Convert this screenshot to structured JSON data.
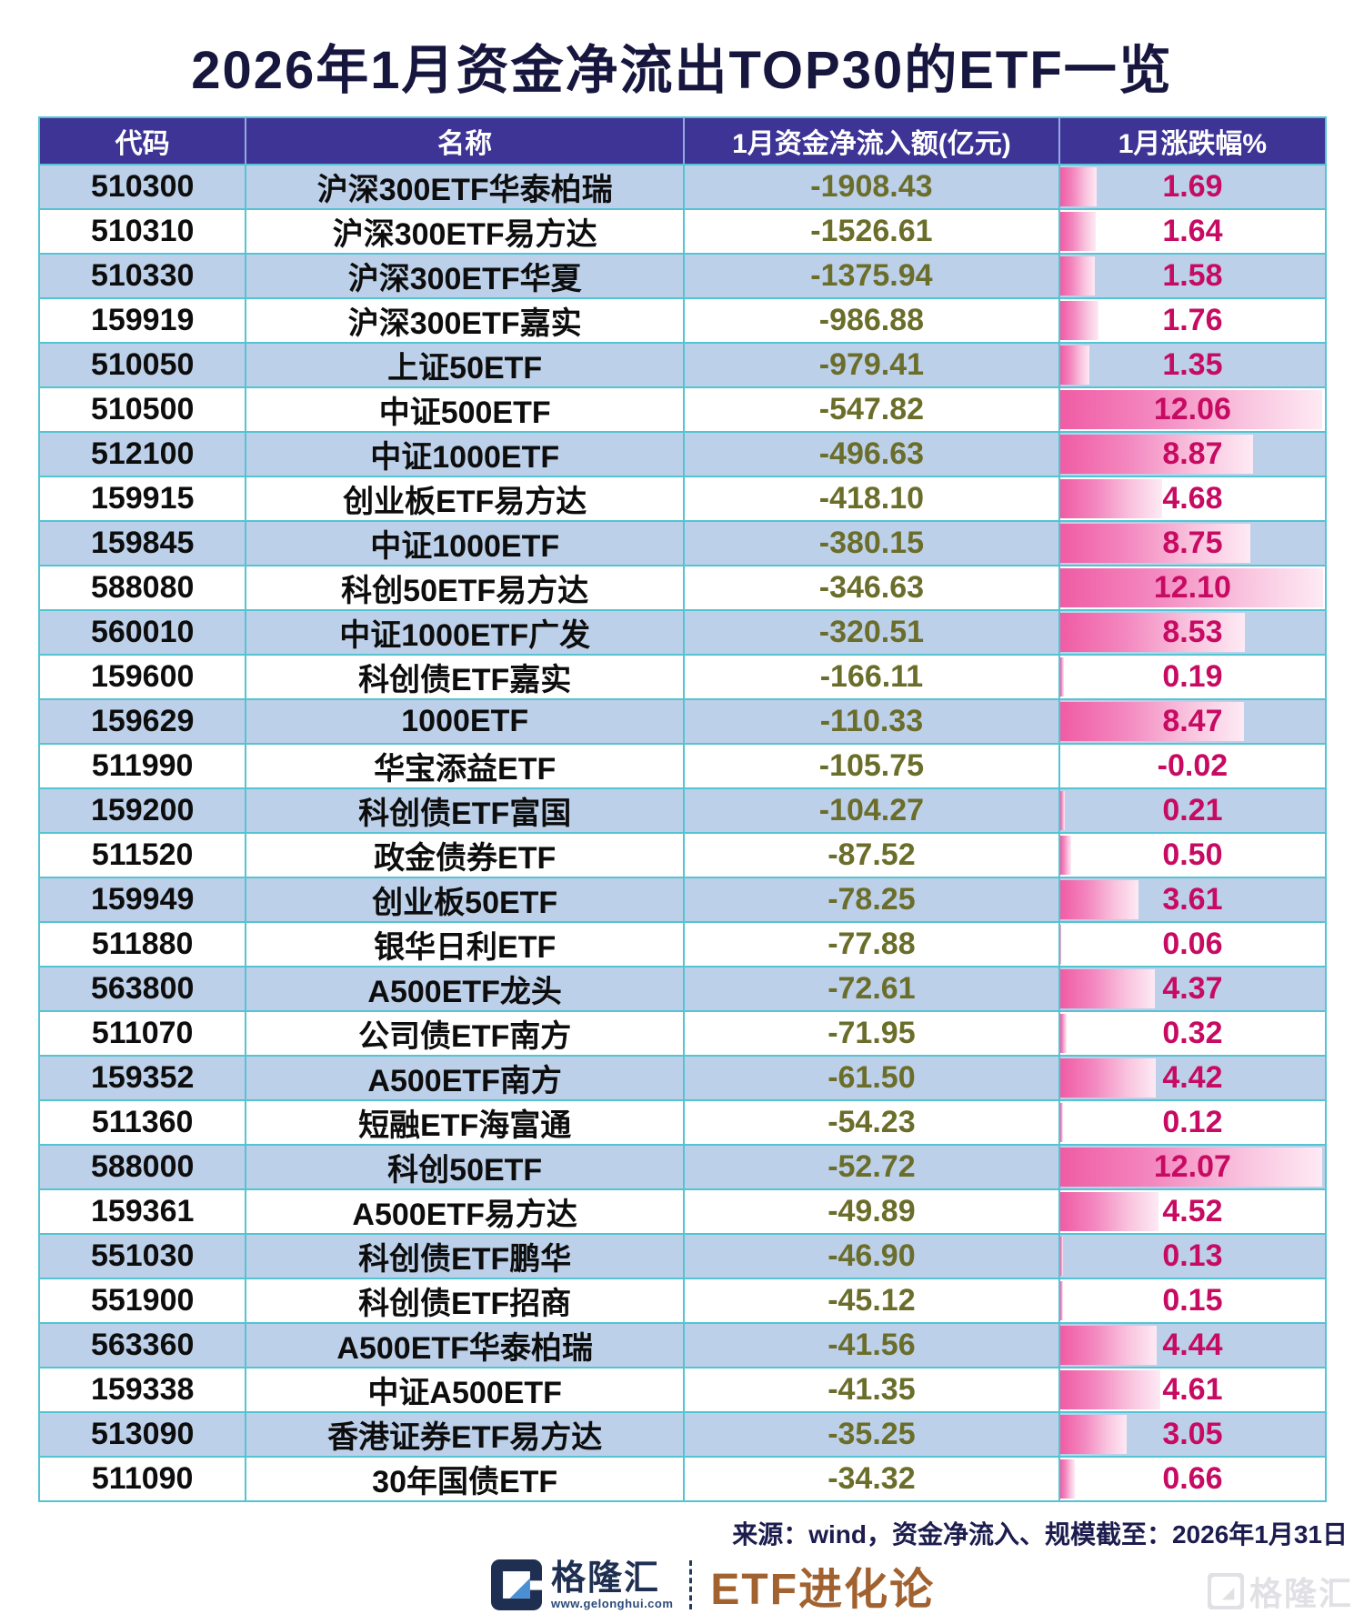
{
  "title": "2026年1月资金净流出TOP30的ETF一览",
  "chart_data": {
    "type": "table",
    "title": "2026年1月资金净流出TOP30的ETF一览",
    "columns": [
      "代码",
      "名称",
      "1月资金净流入额(亿元)",
      "1月涨跌幅%"
    ],
    "bar_column": "1月涨跌幅%",
    "bar_scale_max": 12.2,
    "rows": [
      {
        "code": "510300",
        "name": "沪深300ETF华泰柏瑞",
        "inflow": "-1908.43",
        "change": "1.69"
      },
      {
        "code": "510310",
        "name": "沪深300ETF易方达",
        "inflow": "-1526.61",
        "change": "1.64"
      },
      {
        "code": "510330",
        "name": "沪深300ETF华夏",
        "inflow": "-1375.94",
        "change": "1.58"
      },
      {
        "code": "159919",
        "name": "沪深300ETF嘉实",
        "inflow": "-986.88",
        "change": "1.76"
      },
      {
        "code": "510050",
        "name": "上证50ETF",
        "inflow": "-979.41",
        "change": "1.35"
      },
      {
        "code": "510500",
        "name": "中证500ETF",
        "inflow": "-547.82",
        "change": "12.06"
      },
      {
        "code": "512100",
        "name": "中证1000ETF",
        "inflow": "-496.63",
        "change": "8.87"
      },
      {
        "code": "159915",
        "name": "创业板ETF易方达",
        "inflow": "-418.10",
        "change": "4.68"
      },
      {
        "code": "159845",
        "name": "中证1000ETF",
        "inflow": "-380.15",
        "change": "8.75"
      },
      {
        "code": "588080",
        "name": "科创50ETF易方达",
        "inflow": "-346.63",
        "change": "12.10"
      },
      {
        "code": "560010",
        "name": "中证1000ETF广发",
        "inflow": "-320.51",
        "change": "8.53"
      },
      {
        "code": "159600",
        "name": "科创债ETF嘉实",
        "inflow": "-166.11",
        "change": "0.19"
      },
      {
        "code": "159629",
        "name": "1000ETF",
        "inflow": "-110.33",
        "change": "8.47"
      },
      {
        "code": "511990",
        "name": "华宝添益ETF",
        "inflow": "-105.75",
        "change": "-0.02"
      },
      {
        "code": "159200",
        "name": "科创债ETF富国",
        "inflow": "-104.27",
        "change": "0.21"
      },
      {
        "code": "511520",
        "name": "政金债券ETF",
        "inflow": "-87.52",
        "change": "0.50"
      },
      {
        "code": "159949",
        "name": "创业板50ETF",
        "inflow": "-78.25",
        "change": "3.61"
      },
      {
        "code": "511880",
        "name": "银华日利ETF",
        "inflow": "-77.88",
        "change": "0.06"
      },
      {
        "code": "563800",
        "name": "A500ETF龙头",
        "inflow": "-72.61",
        "change": "4.37"
      },
      {
        "code": "511070",
        "name": "公司债ETF南方",
        "inflow": "-71.95",
        "change": "0.32"
      },
      {
        "code": "159352",
        "name": "A500ETF南方",
        "inflow": "-61.50",
        "change": "4.42"
      },
      {
        "code": "511360",
        "name": "短融ETF海富通",
        "inflow": "-54.23",
        "change": "0.12"
      },
      {
        "code": "588000",
        "name": "科创50ETF",
        "inflow": "-52.72",
        "change": "12.07"
      },
      {
        "code": "159361",
        "name": "A500ETF易方达",
        "inflow": "-49.89",
        "change": "4.52"
      },
      {
        "code": "551030",
        "name": "科创债ETF鹏华",
        "inflow": "-46.90",
        "change": "0.13"
      },
      {
        "code": "551900",
        "name": "科创债ETF招商",
        "inflow": "-45.12",
        "change": "0.15"
      },
      {
        "code": "563360",
        "name": "A500ETF华泰柏瑞",
        "inflow": "-41.56",
        "change": "4.44"
      },
      {
        "code": "159338",
        "name": "中证A500ETF",
        "inflow": "-41.35",
        "change": "4.61"
      },
      {
        "code": "513090",
        "name": "香港证券ETF易方达",
        "inflow": "-35.25",
        "change": "3.05"
      },
      {
        "code": "511090",
        "name": "30年国债ETF",
        "inflow": "-34.32",
        "change": "0.66"
      }
    ]
  },
  "footer": {
    "source": "来源：wind，资金净流入、规模截至：2026年1月31日",
    "brand_name": "格隆汇",
    "brand_url": "www.gelonghui.com",
    "channel": "ETF进化论",
    "watermark": "格隆汇"
  },
  "colors": {
    "header_bg": "#3d3496",
    "alt_row": "#bdd0e9",
    "grid_teal": "#54c4d2",
    "inflow_text": "#6b6d2a",
    "change_text": "#c70b62",
    "bar_pink_start": "#f05ca4",
    "bar_pink_end": "#fdeaf4",
    "title_navy": "#16163f",
    "brand_brown": "#a2622f"
  }
}
